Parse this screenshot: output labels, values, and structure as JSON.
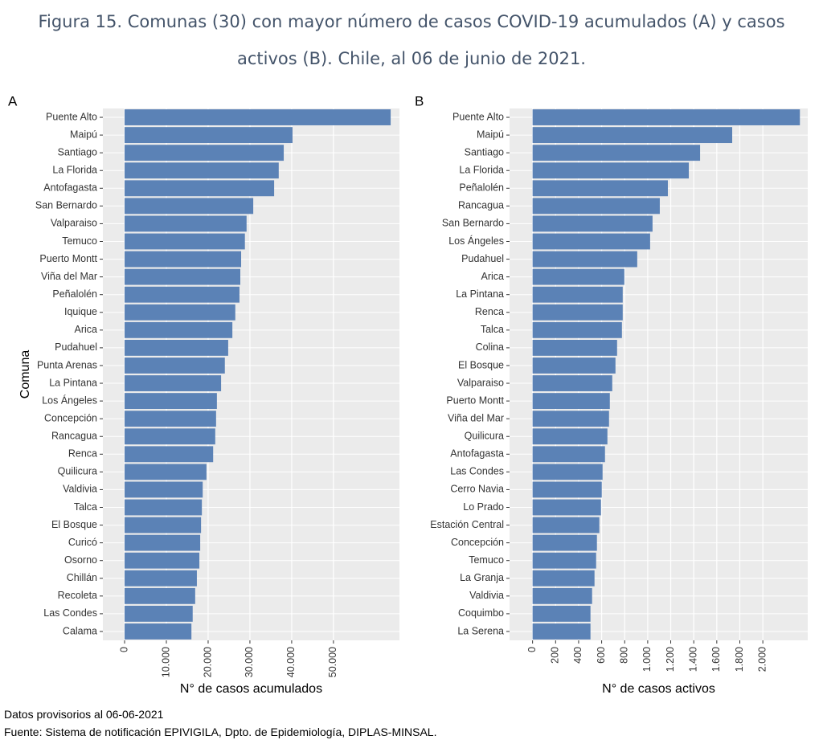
{
  "header": {
    "title": "Figura 15. Comunas (30) con mayor número de casos COVID-19 acumulados (A) y casos activos (B). Chile, al 06 de junio de 2021."
  },
  "chart_data": [
    {
      "type": "barh",
      "panel_label": "A",
      "y_label": "Comuna",
      "x_label": "N° de casos acumulados",
      "color": "#5b82b6",
      "grid": true,
      "categories": [
        "Puente Alto",
        "Maipú",
        "Santiago",
        "La Florida",
        "Antofagasta",
        "San Bernardo",
        "Valparaiso",
        "Temuco",
        "Puerto Montt",
        "Viña del Mar",
        "Peñalolén",
        "Iquique",
        "Arica",
        "Pudahuel",
        "Punta Arenas",
        "La Pintana",
        "Los Ángeles",
        "Concepción",
        "Rancagua",
        "Renca",
        "Quilicura",
        "Valdivia",
        "Talca",
        "El Bosque",
        "Curicó",
        "Osorno",
        "Chillán",
        "Recoleta",
        "Las Condes",
        "Calama"
      ],
      "values": [
        63700,
        40200,
        38100,
        36900,
        35800,
        30800,
        29200,
        28800,
        27900,
        27700,
        27500,
        26500,
        25800,
        24800,
        24000,
        23100,
        22100,
        21900,
        21700,
        21200,
        19600,
        18700,
        18500,
        18300,
        18100,
        17900,
        17300,
        16900,
        16300,
        16000
      ],
      "xlim": [
        -5200,
        65800
      ],
      "xticks": [
        0,
        {
          "value": 10000,
          "label": "10.000"
        },
        {
          "value": 20000,
          "label": "20.000"
        },
        {
          "value": 30000,
          "label": "30.000"
        },
        {
          "value": 40000,
          "label": "40.000"
        },
        {
          "value": 50000,
          "label": "50.000"
        }
      ]
    },
    {
      "type": "barh",
      "panel_label": "B",
      "x_label": "N° de casos activos",
      "color": "#5b82b6",
      "grid": true,
      "categories": [
        "Puente Alto",
        "Maipú",
        "Santiago",
        "La Florida",
        "Peñalolén",
        "Rancagua",
        "San Bernardo",
        "Los Ángeles",
        "Pudahuel",
        "Arica",
        "La Pintana",
        "Renca",
        "Talca",
        "Colina",
        "El Bosque",
        "Valparaiso",
        "Puerto Montt",
        "Viña del Mar",
        "Quilicura",
        "Antofagasta",
        "Las Condes",
        "Cerro Navia",
        "Lo Prado",
        "Estación Central",
        "Concepción",
        "Temuco",
        "La Granja",
        "Valdivia",
        "Coquimbo",
        "La Serena"
      ],
      "values": [
        2322,
        1734,
        1455,
        1357,
        1175,
        1105,
        1042,
        1021,
        909,
        797,
        783,
        783,
        776,
        734,
        720,
        692,
        671,
        664,
        650,
        629,
        608,
        601,
        594,
        580,
        559,
        552,
        538,
        517,
        503,
        503
      ],
      "xlim": [
        -200,
        2390
      ],
      "xticks": [
        0,
        200,
        400,
        600,
        800,
        {
          "value": 1000,
          "label": "1.000"
        },
        {
          "value": 1200,
          "label": "1.200"
        },
        {
          "value": 1400,
          "label": "1.400"
        },
        {
          "value": 1600,
          "label": "1.600"
        },
        {
          "value": 1800,
          "label": "1.800"
        },
        {
          "value": 2000,
          "label": "2.000"
        }
      ]
    }
  ],
  "footer": {
    "notes": [
      "Datos provisorios al 06-06-2021",
      "Fuente: Sistema de notificación EPIVIGILA, Dpto. de Epidemiología, DIPLAS-MINSAL."
    ]
  }
}
